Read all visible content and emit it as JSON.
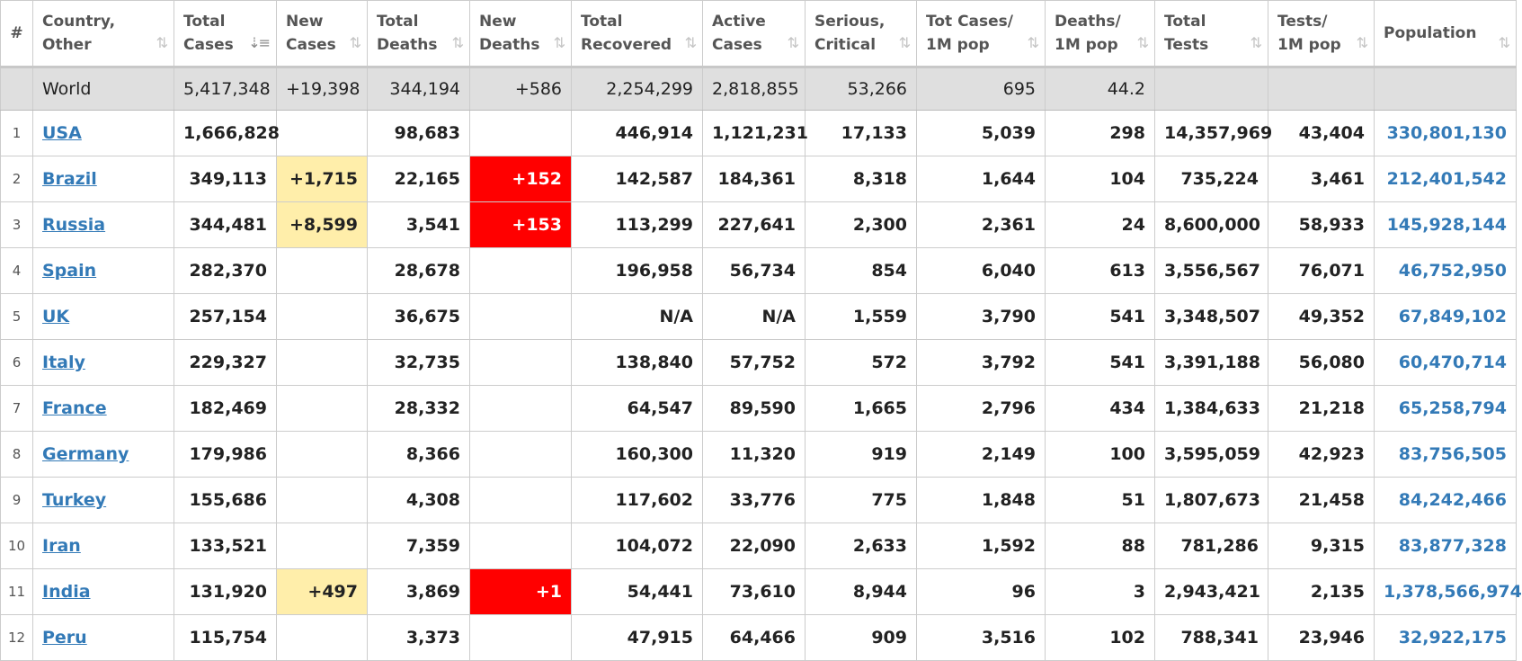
{
  "columns": [
    {
      "key": "idx",
      "label": "#"
    },
    {
      "key": "country",
      "label": "Country,\nOther"
    },
    {
      "key": "total_cases",
      "label": "Total\nCases"
    },
    {
      "key": "new_cases",
      "label": "New\nCases"
    },
    {
      "key": "total_deaths",
      "label": "Total\nDeaths"
    },
    {
      "key": "new_deaths",
      "label": "New\nDeaths"
    },
    {
      "key": "total_recovered",
      "label": "Total\nRecovered"
    },
    {
      "key": "active_cases",
      "label": "Active\nCases"
    },
    {
      "key": "serious",
      "label": "Serious,\nCritical"
    },
    {
      "key": "cases_per_m",
      "label": "Tot Cases/\n1M pop"
    },
    {
      "key": "deaths_per_m",
      "label": "Deaths/\n1M pop"
    },
    {
      "key": "total_tests",
      "label": "Total\nTests"
    },
    {
      "key": "tests_per_m",
      "label": "Tests/\n1M pop"
    },
    {
      "key": "population",
      "label": "Population"
    }
  ],
  "sort_icon": "⇅",
  "sort_active_icon": "⇣≡",
  "world": {
    "country": "World",
    "total_cases": "5,417,348",
    "new_cases": "+19,398",
    "total_deaths": "344,194",
    "new_deaths": "+586",
    "total_recovered": "2,254,299",
    "active_cases": "2,818,855",
    "serious": "53,266",
    "cases_per_m": "695",
    "deaths_per_m": "44.2",
    "total_tests": "",
    "tests_per_m": "",
    "population": ""
  },
  "rows": [
    {
      "idx": "1",
      "country": "USA",
      "total_cases": "1,666,828",
      "new_cases": "",
      "total_deaths": "98,683",
      "new_deaths": "",
      "total_recovered": "446,914",
      "active_cases": "1,121,231",
      "serious": "17,133",
      "cases_per_m": "5,039",
      "deaths_per_m": "298",
      "total_tests": "14,357,969",
      "tests_per_m": "43,404",
      "population": "330,801,130"
    },
    {
      "idx": "2",
      "country": "Brazil",
      "total_cases": "349,113",
      "new_cases": "+1,715",
      "total_deaths": "22,165",
      "new_deaths": "+152",
      "total_recovered": "142,587",
      "active_cases": "184,361",
      "serious": "8,318",
      "cases_per_m": "1,644",
      "deaths_per_m": "104",
      "total_tests": "735,224",
      "tests_per_m": "3,461",
      "population": "212,401,542"
    },
    {
      "idx": "3",
      "country": "Russia",
      "total_cases": "344,481",
      "new_cases": "+8,599",
      "total_deaths": "3,541",
      "new_deaths": "+153",
      "total_recovered": "113,299",
      "active_cases": "227,641",
      "serious": "2,300",
      "cases_per_m": "2,361",
      "deaths_per_m": "24",
      "total_tests": "8,600,000",
      "tests_per_m": "58,933",
      "population": "145,928,144"
    },
    {
      "idx": "4",
      "country": "Spain",
      "total_cases": "282,370",
      "new_cases": "",
      "total_deaths": "28,678",
      "new_deaths": "",
      "total_recovered": "196,958",
      "active_cases": "56,734",
      "serious": "854",
      "cases_per_m": "6,040",
      "deaths_per_m": "613",
      "total_tests": "3,556,567",
      "tests_per_m": "76,071",
      "population": "46,752,950"
    },
    {
      "idx": "5",
      "country": "UK",
      "total_cases": "257,154",
      "new_cases": "",
      "total_deaths": "36,675",
      "new_deaths": "",
      "total_recovered": "N/A",
      "active_cases": "N/A",
      "serious": "1,559",
      "cases_per_m": "3,790",
      "deaths_per_m": "541",
      "total_tests": "3,348,507",
      "tests_per_m": "49,352",
      "population": "67,849,102"
    },
    {
      "idx": "6",
      "country": "Italy",
      "total_cases": "229,327",
      "new_cases": "",
      "total_deaths": "32,735",
      "new_deaths": "",
      "total_recovered": "138,840",
      "active_cases": "57,752",
      "serious": "572",
      "cases_per_m": "3,792",
      "deaths_per_m": "541",
      "total_tests": "3,391,188",
      "tests_per_m": "56,080",
      "population": "60,470,714"
    },
    {
      "idx": "7",
      "country": "France",
      "total_cases": "182,469",
      "new_cases": "",
      "total_deaths": "28,332",
      "new_deaths": "",
      "total_recovered": "64,547",
      "active_cases": "89,590",
      "serious": "1,665",
      "cases_per_m": "2,796",
      "deaths_per_m": "434",
      "total_tests": "1,384,633",
      "tests_per_m": "21,218",
      "population": "65,258,794"
    },
    {
      "idx": "8",
      "country": "Germany",
      "total_cases": "179,986",
      "new_cases": "",
      "total_deaths": "8,366",
      "new_deaths": "",
      "total_recovered": "160,300",
      "active_cases": "11,320",
      "serious": "919",
      "cases_per_m": "2,149",
      "deaths_per_m": "100",
      "total_tests": "3,595,059",
      "tests_per_m": "42,923",
      "population": "83,756,505"
    },
    {
      "idx": "9",
      "country": "Turkey",
      "total_cases": "155,686",
      "new_cases": "",
      "total_deaths": "4,308",
      "new_deaths": "",
      "total_recovered": "117,602",
      "active_cases": "33,776",
      "serious": "775",
      "cases_per_m": "1,848",
      "deaths_per_m": "51",
      "total_tests": "1,807,673",
      "tests_per_m": "21,458",
      "population": "84,242,466"
    },
    {
      "idx": "10",
      "country": "Iran",
      "total_cases": "133,521",
      "new_cases": "",
      "total_deaths": "7,359",
      "new_deaths": "",
      "total_recovered": "104,072",
      "active_cases": "22,090",
      "serious": "2,633",
      "cases_per_m": "1,592",
      "deaths_per_m": "88",
      "total_tests": "781,286",
      "tests_per_m": "9,315",
      "population": "83,877,328"
    },
    {
      "idx": "11",
      "country": "India",
      "total_cases": "131,920",
      "new_cases": "+497",
      "total_deaths": "3,869",
      "new_deaths": "+1",
      "total_recovered": "54,441",
      "active_cases": "73,610",
      "serious": "8,944",
      "cases_per_m": "96",
      "deaths_per_m": "3",
      "total_tests": "2,943,421",
      "tests_per_m": "2,135",
      "population": "1,378,566,974"
    },
    {
      "idx": "12",
      "country": "Peru",
      "total_cases": "115,754",
      "new_cases": "",
      "total_deaths": "3,373",
      "new_deaths": "",
      "total_recovered": "47,915",
      "active_cases": "64,466",
      "serious": "909",
      "cases_per_m": "3,516",
      "deaths_per_m": "102",
      "total_tests": "788,341",
      "tests_per_m": "23,946",
      "population": "32,922,175"
    }
  ],
  "colors": {
    "link": "#337ab7",
    "new_cases_highlight": "#ffeeaa",
    "new_deaths_highlight": "#ff0000",
    "world_row": "#dfdfdf"
  }
}
